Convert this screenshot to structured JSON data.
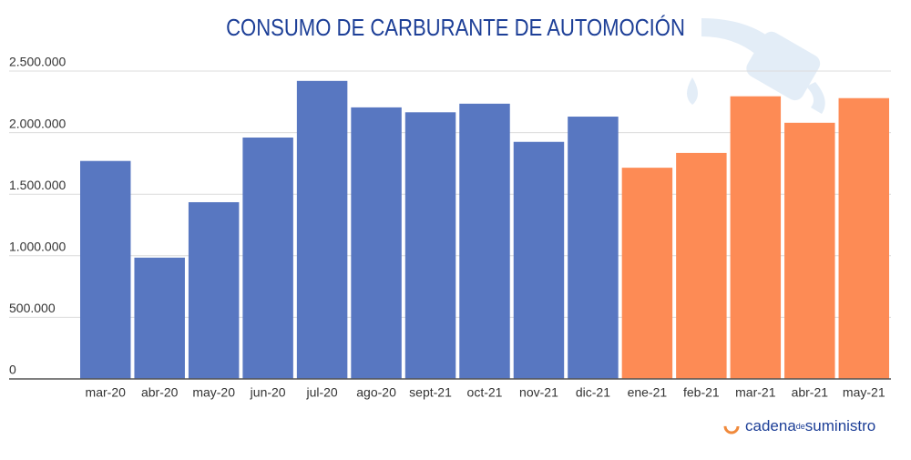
{
  "chart_data": {
    "type": "bar",
    "title": "CONSUMO DE CARBURANTE DE AUTOMOCIÓN",
    "categories": [
      "mar-20",
      "abr-20",
      "may-20",
      "jun-20",
      "jul-20",
      "ago-20",
      "sept-21",
      "oct-21",
      "nov-21",
      "dic-21",
      "ene-21",
      "feb-21",
      "mar-21",
      "abr-21",
      "may-21"
    ],
    "values": [
      1770000,
      985000,
      1435000,
      1960000,
      2420000,
      2205000,
      2165000,
      2235000,
      1925000,
      2130000,
      1715000,
      1835000,
      2295000,
      2080000,
      2280000
    ],
    "colors": [
      "#5877c1",
      "#5877c1",
      "#5877c1",
      "#5877c1",
      "#5877c1",
      "#5877c1",
      "#5877c1",
      "#5877c1",
      "#5877c1",
      "#5877c1",
      "#fd8b55",
      "#fd8b55",
      "#fd8b55",
      "#fd8b55",
      "#fd8b55"
    ],
    "ylim": [
      0,
      2500000
    ],
    "yticks": [
      0,
      {
        "value": 500000,
        "label": "500.000"
      },
      {
        "value": 1000000,
        "label": "1.000.000"
      },
      {
        "value": 1500000,
        "label": "1.500.000"
      },
      {
        "value": 2000000,
        "label": "2.000.000"
      },
      {
        "value": 2500000,
        "label": "2.500.000"
      }
    ],
    "grid": true
  },
  "logo": {
    "part1": "cadena",
    "part2": "de",
    "part3": "suministro"
  }
}
